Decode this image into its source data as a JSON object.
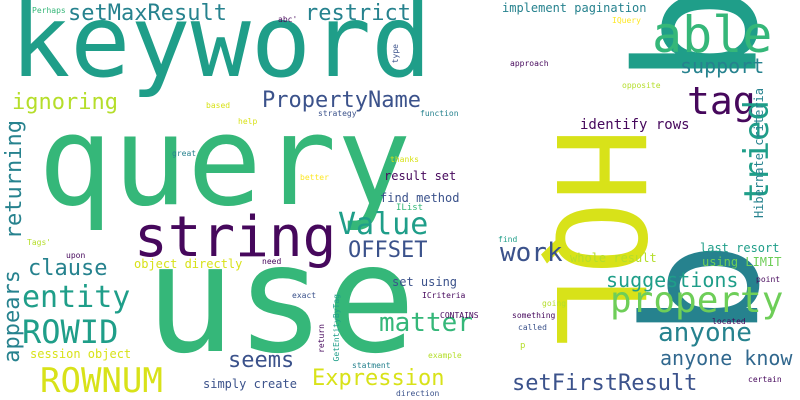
{
  "words": {
    "keyword": "keyword",
    "query": "query",
    "use": "use",
    "hql": "HQL",
    "q1": "q",
    "q2": "q",
    "able": "able",
    "tag": "tag",
    "tried": "tried",
    "support": "support",
    "string": "string",
    "property": "property",
    "property_name": "PropertyName",
    "set_max_result": "setMaxResult",
    "restrict": "restrict",
    "ignoring": "ignoring",
    "returning": "returning",
    "clause": "clause",
    "entity": "entity",
    "rowid": "ROWID",
    "rownum": "ROWNUM",
    "appears": "appears",
    "value": "Value",
    "offset": "OFFSET",
    "work": "work",
    "suggestions": "suggestions",
    "matter": "matter",
    "anyone": "anyone",
    "anyone_know": "anyone know",
    "seems": "seems",
    "expression": "Expression",
    "set_first_result": "setFirstResult",
    "identify_rows": "identify rows",
    "implement_pagination": "implement pagination",
    "result_set": "result set",
    "find_method": "find method",
    "ilist": "IList",
    "last_resort": "last resort",
    "using_limit": "using LIMIT",
    "hibernate_criteria": "Hibernate criteria",
    "set_using": "set using",
    "whole_result": "whole result",
    "object_directly": "object directly",
    "session_object": "session object",
    "simply_create": "simply create",
    "perhaps": "Perhaps",
    "abc": "abc'",
    "iquery": "IQuery",
    "type": "type",
    "approach": "approach",
    "opposite": "opposite",
    "based": "based",
    "strategy": "strategy",
    "function": "function",
    "help": "help",
    "great": "great",
    "thanks": "thanks",
    "better": "better",
    "tags": "Tags'",
    "upon": "upon",
    "need": "need",
    "find": "find",
    "exact": "exact",
    "icriteria": "ICriteria",
    "point": "point",
    "going": "going",
    "contains": "CONTAINS",
    "something": "something",
    "located": "located",
    "called": "called",
    "return": "return",
    "get_entity_by_tag": "GetEntityByTag",
    "p": "p",
    "example": "example",
    "statment": "statment",
    "certain": "certain",
    "direction": "direction"
  },
  "colors": {
    "dark_purple": "#46085c",
    "indigo": "#3b528b",
    "slate": "#31688e",
    "teal": "#26828e",
    "green_teal": "#1f9e89",
    "emerald": "#35b779",
    "light_green": "#6ece58",
    "lime": "#b5de2b",
    "yellow": "#d8e219",
    "bright_yellow": "#fde725"
  }
}
